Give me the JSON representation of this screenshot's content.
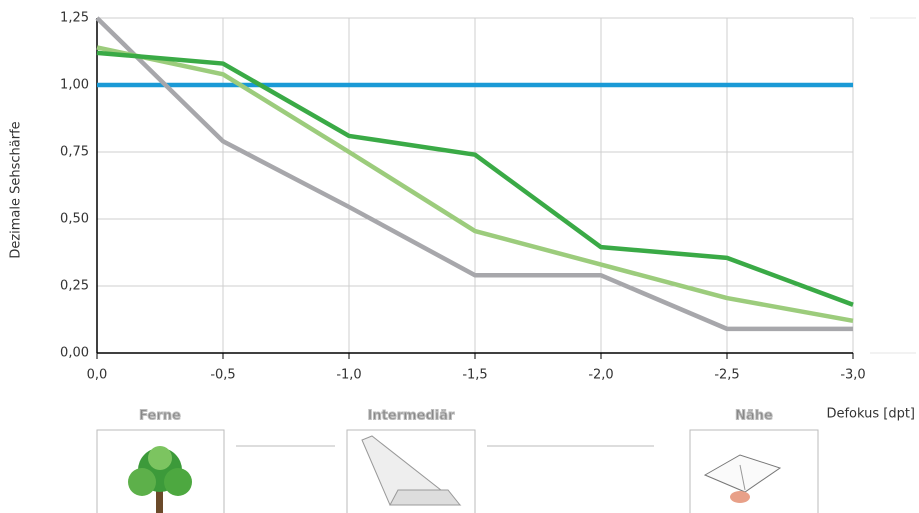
{
  "chart_data": {
    "type": "line",
    "y_label": "Dezimale Sehschärfe",
    "x_label": "Defokus [dpt]",
    "x": [
      0,
      -0.5,
      -1.0,
      -1.5,
      -2.0,
      -2.5,
      -3.0
    ],
    "xlim": [
      0,
      -3.0
    ],
    "xticks": [
      {
        "value": 0,
        "label": "0,0"
      },
      {
        "value": -0.5,
        "label": "-0,5"
      },
      {
        "value": -1.0,
        "label": "-1,0"
      },
      {
        "value": -1.5,
        "label": "-1,5"
      },
      {
        "value": -2.0,
        "label": "-2,0"
      },
      {
        "value": -2.5,
        "label": "-2,5"
      },
      {
        "value": -3.0,
        "label": "-3,0"
      }
    ],
    "ylim": [
      0,
      1.25
    ],
    "yticks": [
      {
        "value": 0,
        "label": "0,00"
      },
      {
        "value": 0.25,
        "label": "0,25"
      },
      {
        "value": 0.5,
        "label": "0,50"
      },
      {
        "value": 0.75,
        "label": "0,75"
      },
      {
        "value": 1.0,
        "label": "1,00"
      },
      {
        "value": 1.25,
        "label": "1,25"
      }
    ],
    "grid": true,
    "series": [
      {
        "color": "#1a9ad6",
        "values": [
          1.0,
          1.0,
          1.0,
          1.0,
          1.0,
          1.0,
          1.0
        ]
      },
      {
        "color": "#a7a7ab",
        "values": [
          1.25,
          0.79,
          0.545,
          0.29,
          0.29,
          0.09,
          0.09
        ]
      },
      {
        "color": "#9ccc7c",
        "values": [
          1.14,
          1.04,
          0.75,
          0.455,
          0.33,
          0.205,
          0.12
        ]
      },
      {
        "color": "#3aaa46",
        "values": [
          1.12,
          1.08,
          0.81,
          0.74,
          0.395,
          0.355,
          0.18
        ]
      }
    ]
  },
  "zones": [
    "Ferne",
    "Intermediär",
    "Nähe"
  ]
}
